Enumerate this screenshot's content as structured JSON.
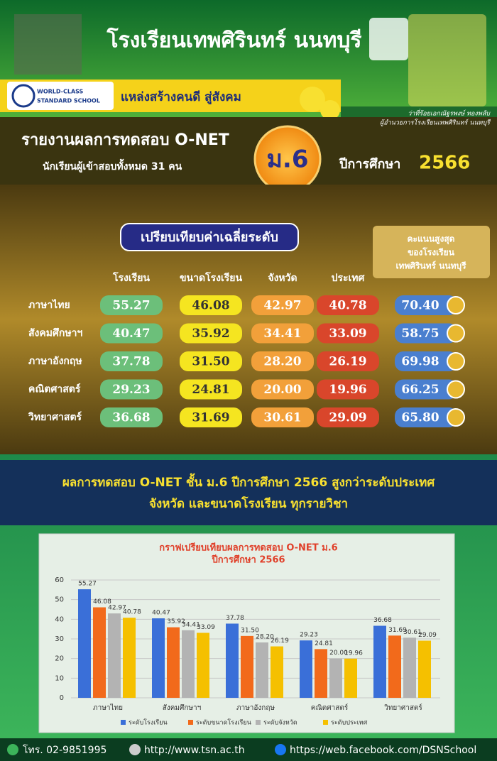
{
  "header": {
    "title": "โรงเรียนเทพศิรินทร์ นนทบุรี",
    "slogan": "แหล่งสร้างคนดี สู่สังคม",
    "logo": {
      "line1": "WORLD-CLASS",
      "line2": "STANDARD SCHOOL"
    },
    "director_name": "ว่าที่ร้อยเอกณัฐรพงษ์ ทองพลับ",
    "director_position": "ผู้อำนวยการโรงเรียนเทพศิรินทร์ นนทบุรี"
  },
  "report": {
    "title": "รายงานผลการทดสอบ O-NET",
    "students": "นักเรียนผู้เข้าสอบทั้งหมด 31 คน",
    "grade": "ม.6",
    "year_label": "ปีการศึกษา",
    "year": "2566"
  },
  "comparison": {
    "heading": "เปรียบเทียบค่าเฉลี่ยระดับ",
    "top_score_box": [
      "คะแนนสูงสุด",
      "ของโรงเรียน",
      "เทพศิรินทร์ นนทบุรี"
    ],
    "columns": [
      "โรงเรียน",
      "ขนาดโรงเรียน",
      "จังหวัด",
      "ประเทศ"
    ],
    "rows": [
      {
        "subject": "ภาษาไทย",
        "values": [
          "55.27",
          "46.08",
          "42.97",
          "40.78",
          "70.40"
        ]
      },
      {
        "subject": "สังคมศึกษาฯ",
        "values": [
          "40.47",
          "35.92",
          "34.41",
          "33.09",
          "58.75"
        ]
      },
      {
        "subject": "ภาษาอังกฤษ",
        "values": [
          "37.78",
          "31.50",
          "28.20",
          "26.19",
          "69.98"
        ]
      },
      {
        "subject": "คณิตศาสตร์",
        "values": [
          "29.23",
          "24.81",
          "20.00",
          "19.96",
          "66.25"
        ]
      },
      {
        "subject": "วิทยาศาสตร์",
        "values": [
          "36.68",
          "31.69",
          "30.61",
          "29.09",
          "65.80"
        ]
      }
    ]
  },
  "summary": [
    "ผลการทดสอบ O-NET ชั้น ม.6 ปีการศึกษา 2566 สูงกว่าระดับประเทศ",
    "จังหวัด และขนาดโรงเรียน ทุกรายวิชา"
  ],
  "chart_data": {
    "type": "bar",
    "title": "กราฟเปรียบเทียบผลการทดสอบ O-NET ม.6",
    "subtitle": "ปีการศึกษา 2566",
    "categories": [
      "ภาษาไทย",
      "สังคมศึกษาฯ",
      "ภาษาอังกฤษ",
      "คณิตศาสตร์",
      "วิทยาศาสตร์"
    ],
    "series": [
      {
        "name": "ระดับโรงเรียน",
        "color": "#3a6fd8",
        "values": [
          55.27,
          40.47,
          37.78,
          29.23,
          36.68
        ]
      },
      {
        "name": "ระดับขนาดโรงเรียน",
        "color": "#f26a1b",
        "values": [
          46.08,
          35.92,
          31.5,
          24.81,
          31.69
        ],
        "value_labels": [
          "46.08",
          "35.92",
          "31.50",
          "24.81",
          "31.69"
        ]
      },
      {
        "name": "ระดับจังหวัด",
        "color": "#b3b3b3",
        "values": [
          42.97,
          34.41,
          28.2,
          20,
          30.61
        ],
        "value_labels": [
          "42.97",
          "34.41",
          "28.20",
          "20.00",
          "30.61"
        ]
      },
      {
        "name": "ระดับประเทศ",
        "color": "#f5c000",
        "values": [
          40.78,
          33.09,
          26.19,
          19.96,
          29.09
        ]
      }
    ],
    "ylim": [
      0,
      60
    ],
    "yticks": [
      0,
      10,
      20,
      30,
      40,
      50,
      60
    ],
    "grid": true,
    "legend": "bottom"
  },
  "footer": {
    "phone": "โทร. 02-9851995",
    "website": "http://www.tsn.ac.th",
    "facebook": "https://web.facebook.com/DSNSchool"
  }
}
